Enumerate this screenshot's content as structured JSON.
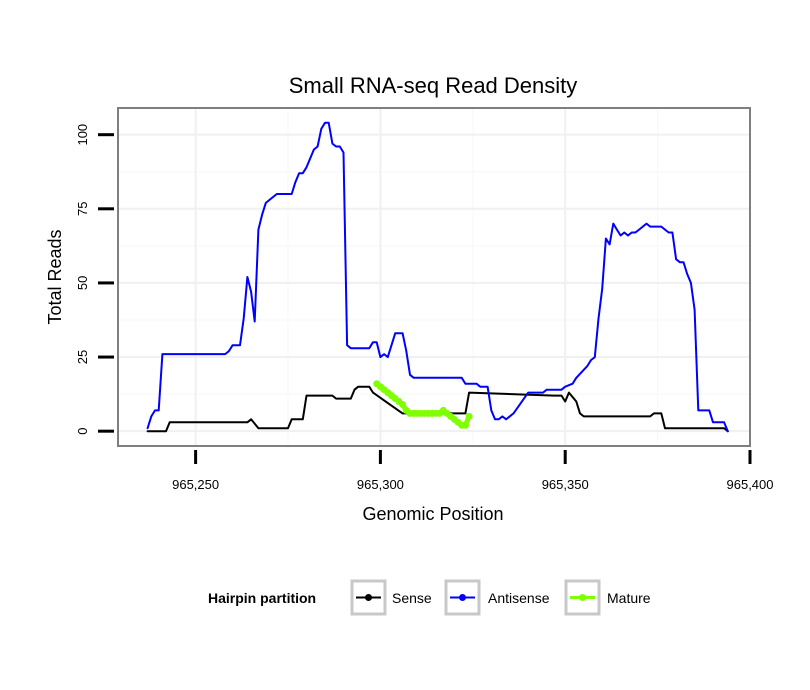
{
  "chart_data": {
    "type": "line",
    "title": "Small RNA-seq Read Density",
    "xlabel": "Genomic Position",
    "ylabel": "Total Reads",
    "xlim": [
      965229,
      965400
    ],
    "ylim": [
      -5,
      109
    ],
    "x_ticks": [
      965250,
      965300,
      965350,
      965400
    ],
    "x_tick_labels": [
      "965,250",
      "965,300",
      "965,350",
      "965,400"
    ],
    "y_ticks": [
      0,
      25,
      50,
      75,
      100
    ],
    "y_tick_labels": [
      "0",
      "25",
      "50",
      "75",
      "100"
    ],
    "grid": true,
    "legend": {
      "title": "Hairpin partition",
      "position": "bottom",
      "entries": [
        "Sense",
        "Antisense",
        "Mature"
      ]
    },
    "series": [
      {
        "name": "Sense",
        "color": "#000000",
        "points": [
          [
            965237,
            0
          ],
          [
            965242,
            0
          ],
          [
            965243,
            3
          ],
          [
            965264,
            3
          ],
          [
            965265,
            4
          ],
          [
            965267,
            1
          ],
          [
            965275,
            1
          ],
          [
            965276,
            4
          ],
          [
            965279,
            4
          ],
          [
            965280,
            12
          ],
          [
            965287,
            12
          ],
          [
            965288,
            11
          ],
          [
            965292,
            11
          ],
          [
            965293,
            14
          ],
          [
            965294,
            15
          ],
          [
            965297,
            15
          ],
          [
            965298,
            13
          ],
          [
            965306,
            6
          ],
          [
            965323,
            6
          ],
          [
            965324,
            13
          ],
          [
            965347,
            12
          ],
          [
            965349,
            12
          ],
          [
            965350,
            10
          ],
          [
            965351,
            13
          ],
          [
            965353,
            10
          ],
          [
            965354,
            6
          ],
          [
            965355,
            5
          ],
          [
            965373,
            5
          ],
          [
            965374,
            6
          ],
          [
            965376,
            6
          ],
          [
            965377,
            1
          ],
          [
            965393,
            1
          ],
          [
            965394,
            0
          ]
        ]
      },
      {
        "name": "Antisense",
        "color": "#0000ff",
        "points": [
          [
            965237,
            1
          ],
          [
            965238,
            5
          ],
          [
            965239,
            7
          ],
          [
            965240,
            7
          ],
          [
            965241,
            26
          ],
          [
            965258,
            26
          ],
          [
            965259,
            27
          ],
          [
            965260,
            29
          ],
          [
            965262,
            29
          ],
          [
            965263,
            38
          ],
          [
            965264,
            52
          ],
          [
            965265,
            47
          ],
          [
            965266,
            37
          ],
          [
            965267,
            68
          ],
          [
            965268,
            73
          ],
          [
            965269,
            77
          ],
          [
            965270,
            78
          ],
          [
            965271,
            79
          ],
          [
            965272,
            80
          ],
          [
            965276,
            80
          ],
          [
            965277,
            84
          ],
          [
            965278,
            87
          ],
          [
            965279,
            87
          ],
          [
            965280,
            89
          ],
          [
            965281,
            92
          ],
          [
            965282,
            95
          ],
          [
            965283,
            96
          ],
          [
            965284,
            102
          ],
          [
            965285,
            104
          ],
          [
            965286,
            104
          ],
          [
            965287,
            97
          ],
          [
            965288,
            96
          ],
          [
            965289,
            96
          ],
          [
            965290,
            94
          ],
          [
            965291,
            29
          ],
          [
            965292,
            28
          ],
          [
            965297,
            28
          ],
          [
            965298,
            30
          ],
          [
            965299,
            30
          ],
          [
            965300,
            25
          ],
          [
            965301,
            26
          ],
          [
            965302,
            25
          ],
          [
            965303,
            29
          ],
          [
            965304,
            33
          ],
          [
            965306,
            33
          ],
          [
            965307,
            27
          ],
          [
            965308,
            19
          ],
          [
            965309,
            18
          ],
          [
            965322,
            18
          ],
          [
            965323,
            16
          ],
          [
            965326,
            16
          ],
          [
            965327,
            15
          ],
          [
            965329,
            15
          ],
          [
            965330,
            7
          ],
          [
            965331,
            4
          ],
          [
            965332,
            4
          ],
          [
            965333,
            5
          ],
          [
            965334,
            4
          ],
          [
            965336,
            6
          ],
          [
            965340,
            13
          ],
          [
            965344,
            13
          ],
          [
            965345,
            14
          ],
          [
            965349,
            14
          ],
          [
            965350,
            15
          ],
          [
            965352,
            16
          ],
          [
            965353,
            18
          ],
          [
            965356,
            22
          ],
          [
            965357,
            24
          ],
          [
            965358,
            25
          ],
          [
            965359,
            38
          ],
          [
            965360,
            48
          ],
          [
            965361,
            65
          ],
          [
            965362,
            63
          ],
          [
            965363,
            70
          ],
          [
            965364,
            68
          ],
          [
            965365,
            66
          ],
          [
            965366,
            67
          ],
          [
            965367,
            66
          ],
          [
            965368,
            67
          ],
          [
            965369,
            67
          ],
          [
            965370,
            68
          ],
          [
            965371,
            69
          ],
          [
            965372,
            70
          ],
          [
            965373,
            69
          ],
          [
            965376,
            69
          ],
          [
            965377,
            68
          ],
          [
            965378,
            67
          ],
          [
            965379,
            67
          ],
          [
            965380,
            58
          ],
          [
            965381,
            57
          ],
          [
            965382,
            57
          ],
          [
            965383,
            53
          ],
          [
            965384,
            50
          ],
          [
            965385,
            41
          ],
          [
            965386,
            7
          ],
          [
            965389,
            7
          ],
          [
            965390,
            3
          ],
          [
            965393,
            3
          ],
          [
            965394,
            0
          ]
        ]
      },
      {
        "name": "Mature",
        "color": "#7fff00",
        "points": [
          [
            965299,
            16
          ],
          [
            965300,
            15
          ],
          [
            965301,
            14
          ],
          [
            965302,
            13
          ],
          [
            965303,
            12
          ],
          [
            965304,
            11
          ],
          [
            965305,
            10
          ],
          [
            965306,
            9
          ],
          [
            965307,
            7
          ],
          [
            965308,
            6
          ],
          [
            965309,
            6
          ],
          [
            965310,
            6
          ],
          [
            965311,
            6
          ],
          [
            965312,
            6
          ],
          [
            965313,
            6
          ],
          [
            965314,
            6
          ],
          [
            965315,
            6
          ],
          [
            965316,
            6
          ],
          [
            965317,
            7
          ],
          [
            965318,
            6
          ],
          [
            965319,
            5
          ],
          [
            965320,
            4
          ],
          [
            965321,
            3
          ],
          [
            965322,
            2
          ],
          [
            965323,
            2
          ],
          [
            965324,
            5
          ]
        ]
      }
    ]
  }
}
